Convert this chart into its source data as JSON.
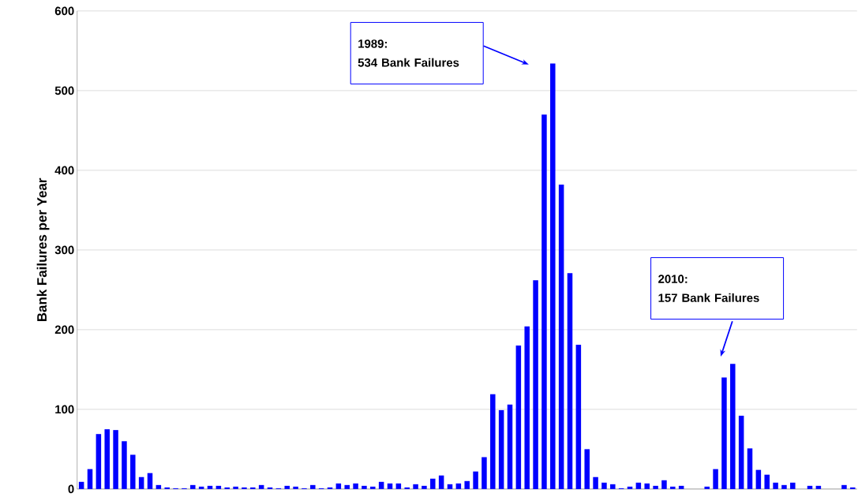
{
  "chart_data": {
    "type": "bar",
    "ylabel": "Bank Failures per Year",
    "categories": [
      null,
      null,
      null,
      null,
      null,
      null,
      null,
      null,
      null,
      null,
      null,
      null,
      null,
      null,
      null,
      null,
      null,
      null,
      null,
      null,
      null,
      null,
      null,
      null,
      null,
      null,
      null,
      null,
      null,
      null,
      null,
      null,
      null,
      null,
      null,
      null,
      null,
      null,
      null,
      null,
      null,
      null,
      null,
      null,
      null,
      null,
      null,
      null,
      null,
      null,
      null,
      null,
      null,
      null,
      null,
      null,
      null,
      null,
      null,
      null,
      null,
      null,
      null,
      null,
      null,
      null,
      null,
      null,
      null,
      null,
      null,
      null,
      null,
      null,
      null,
      null,
      null,
      null,
      null,
      null,
      null,
      null,
      null,
      null,
      null,
      null,
      null,
      null,
      null,
      null,
      null
    ],
    "values": [
      9,
      25,
      69,
      75,
      74,
      60,
      43,
      15,
      20,
      5,
      2,
      1,
      1,
      5,
      3,
      4,
      4,
      2,
      3,
      2,
      2,
      5,
      2,
      1,
      4,
      3,
      1,
      5,
      1,
      2,
      7,
      5,
      7,
      4,
      3,
      9,
      7,
      7,
      2,
      6,
      4,
      13,
      17,
      6,
      7,
      10,
      22,
      40,
      119,
      99,
      106,
      180,
      204,
      262,
      470,
      534,
      382,
      271,
      181,
      50,
      15,
      8,
      6,
      1,
      3,
      8,
      7,
      4,
      11,
      3,
      4,
      0,
      0,
      3,
      25,
      140,
      157,
      92,
      51,
      24,
      18,
      8,
      5,
      8,
      0,
      4,
      4,
      0,
      0,
      5,
      2
    ],
    "color": "#0000ff",
    "ylim": [
      0,
      600
    ],
    "yticks": [
      0,
      100,
      200,
      300,
      400,
      500,
      600
    ],
    "grid": "y",
    "annotations": [
      "1989:\n534 Bank Failures",
      "2010:\n157 Bank Failures"
    ]
  }
}
